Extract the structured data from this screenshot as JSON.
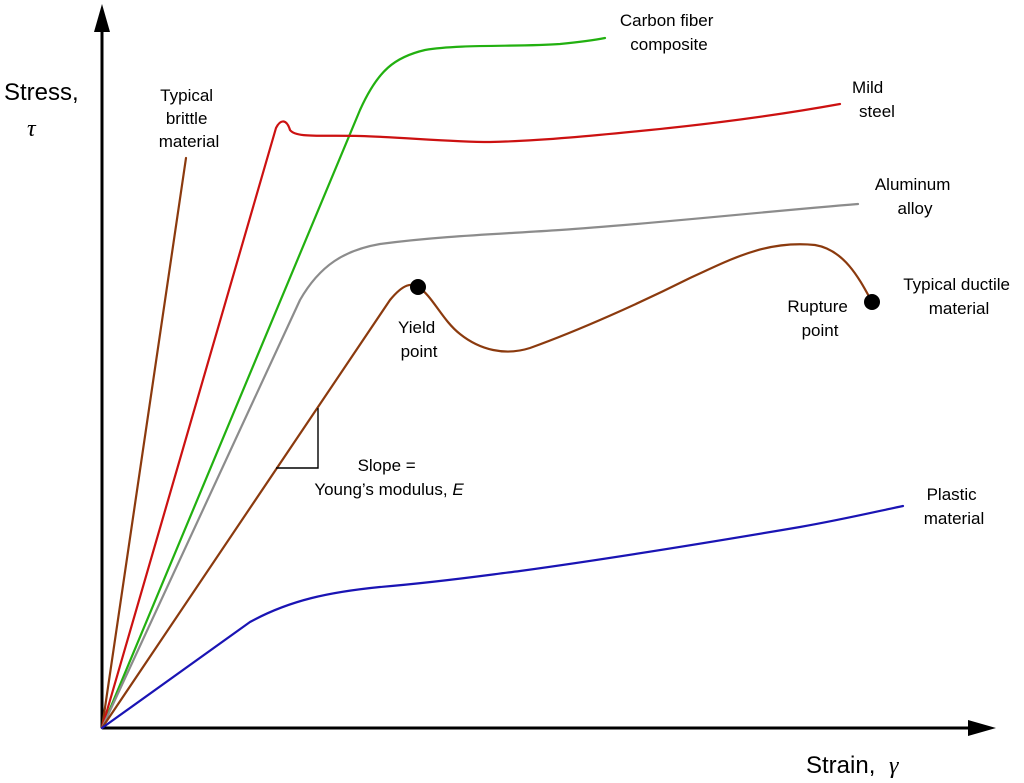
{
  "axes": {
    "y_label": "Stress,",
    "y_symbol": "τ",
    "x_label": "Strain,",
    "x_symbol": "γ"
  },
  "colors": {
    "brittle": "#8b3a0e",
    "steel": "#cc1111",
    "carbon": "#22b010",
    "aluminum": "#8c8c8c",
    "ductile": "#8b3a0e",
    "plastic": "#1a14b4",
    "axis": "#000000"
  },
  "labels": {
    "brittle": [
      "Typical",
      "brittle",
      "material"
    ],
    "carbon": [
      "Carbon fiber",
      "composite"
    ],
    "steel": [
      "Mild",
      "steel"
    ],
    "aluminum": [
      "Aluminum",
      "alloy"
    ],
    "ductile": [
      "Typical ductile",
      "material"
    ],
    "rupture": [
      "Rupture",
      "point"
    ],
    "yield": [
      "Yield",
      "point"
    ],
    "slope_line1": "Slope =",
    "slope_line2_prefix": "Young’s modulus, ",
    "slope_line2_var": "E",
    "plastic": [
      "Plastic",
      "material"
    ]
  }
}
